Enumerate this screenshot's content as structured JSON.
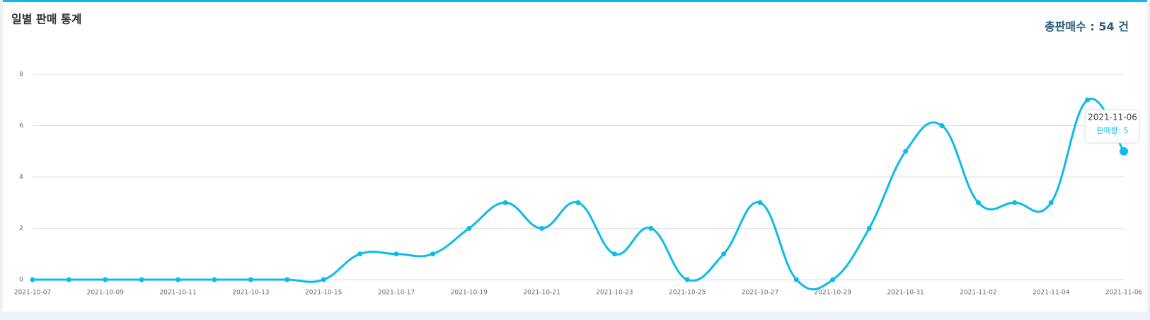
{
  "chart_data": {
    "type": "line",
    "title": "일별 판매 통계",
    "total_label": "총판매수 :",
    "total": 54,
    "total_unit": "건",
    "categories": [
      "2021-10-07",
      null,
      "2021-10-09",
      null,
      "2021-10-11",
      null,
      "2021-10-13",
      null,
      "2021-10-15",
      null,
      "2021-10-17",
      null,
      "2021-10-19",
      null,
      "2021-10-21",
      null,
      "2021-10-23",
      null,
      "2021-10-25",
      null,
      "2021-10-27",
      null,
      "2021-10-29",
      null,
      "2021-10-31",
      null,
      "2021-11-02",
      null,
      "2021-11-04",
      null,
      "2021-11-06"
    ],
    "values": [
      0,
      0,
      0,
      0,
      0,
      0,
      0,
      0,
      0,
      1,
      1,
      1,
      2,
      3,
      2,
      3,
      1,
      2,
      0,
      1,
      3,
      0,
      0,
      2,
      5,
      6,
      3,
      3,
      3,
      7,
      5
    ],
    "color": "#0dbbea",
    "ylim": [
      0,
      8
    ],
    "yticks": [
      0,
      2,
      4,
      6,
      8
    ],
    "grid": true,
    "tooltip": {
      "title": "2021-11-06",
      "label": "판매량:",
      "value": 5
    }
  }
}
